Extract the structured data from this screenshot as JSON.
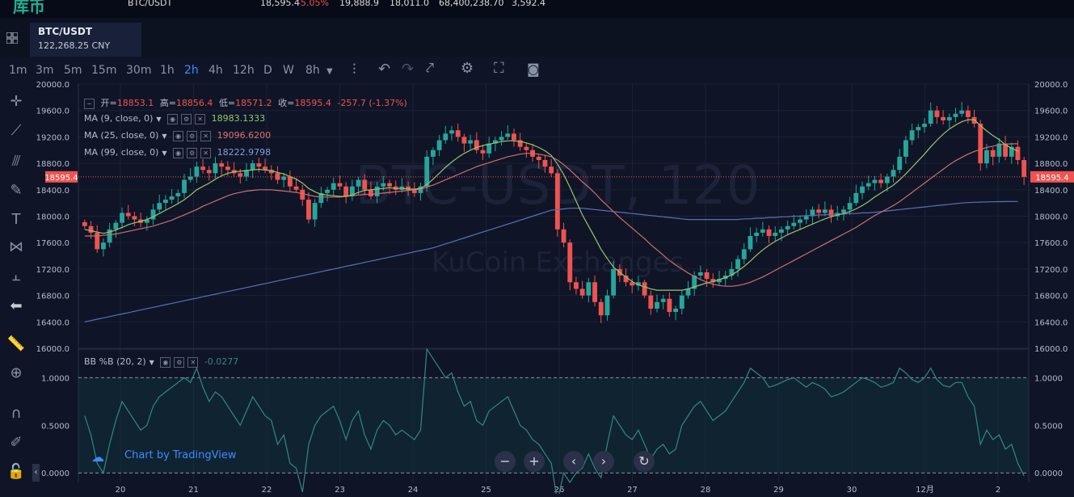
{
  "topbar": {
    "logo": "库币",
    "ticker_pair": "BTC/USDT",
    "last": "18,595.4",
    "change": "-5.05%",
    "high": "19,888.9",
    "low": "18,011.0",
    "volume": "68,400,238.70",
    "amount": "3,592.4"
  },
  "header": {
    "symbol": "BTC/USDT",
    "cny": "122,268.25 CNY"
  },
  "toolbar": {
    "timeframes": [
      "1m",
      "3m",
      "5m",
      "15m",
      "30m",
      "1h",
      "2h",
      "4h",
      "12h",
      "D",
      "W",
      "8h"
    ],
    "active": "2h"
  },
  "legend": {
    "open_label": "开=",
    "open": "18853.1",
    "high_label": "高=",
    "high": "18856.4",
    "low_label": "低=",
    "low": "18571.2",
    "close_label": "收=",
    "close": "18595.4",
    "change": "-257.7 (-1.37%)",
    "ma9_label": "MA (9, close, 0)",
    "ma9": "18983.1333",
    "ma25_label": "MA (25, close, 0)",
    "ma25": "19096.6200",
    "ma99_label": "MA (99, close, 0)",
    "ma99": "18222.9798",
    "bb_label": "BB %B (20, 2)",
    "bb": "-0.0277"
  },
  "watermark": {
    "pair": "BTC-USDT, 120",
    "exchange": "KuCoin Exchanges"
  },
  "tv_label": "Chart by TradingView",
  "colors": {
    "up": "#26a69a",
    "down": "#ef5350",
    "ma9": "#9bc46b",
    "ma25": "#d06d72",
    "ma99": "#5b6fb8",
    "bb": "#2e8a82",
    "bg": "#0f1527"
  },
  "chart_data": {
    "type": "candlestick",
    "x_ticks": [
      "20",
      "21",
      "22",
      "23",
      "24",
      "25",
      "26",
      "27",
      "28",
      "29",
      "30",
      "12月",
      "2"
    ],
    "y_ticks": [
      "20000.0",
      "19600.0",
      "19200.0",
      "18800.0",
      "18400.0",
      "18000.0",
      "17600.0",
      "17200.0",
      "16800.0",
      "16400.0",
      "16000.0"
    ],
    "ylim": [
      16000,
      20000
    ],
    "price_tag": "18595.4",
    "close": [
      17850,
      17750,
      17500,
      17600,
      17800,
      17900,
      18050,
      18000,
      17950,
      17900,
      17950,
      18100,
      18200,
      18250,
      18300,
      18350,
      18550,
      18600,
      18750,
      18700,
      18650,
      18800,
      18750,
      18700,
      18650,
      18600,
      18700,
      18800,
      18750,
      18700,
      18650,
      18550,
      18600,
      18450,
      18400,
      18250,
      17950,
      18200,
      18350,
      18400,
      18500,
      18450,
      18300,
      18450,
      18550,
      18400,
      18300,
      18450,
      18500,
      18450,
      18400,
      18450,
      18400,
      18350,
      18450,
      18900,
      19000,
      19150,
      19250,
      19300,
      19200,
      19100,
      19150,
      19000,
      18950,
      19100,
      19150,
      19200,
      19250,
      19150,
      19050,
      19000,
      18900,
      18850,
      18750,
      18650,
      17800,
      17600,
      17000,
      16900,
      16800,
      17000,
      16700,
      16500,
      16800,
      17200,
      17100,
      17000,
      16950,
      17000,
      16800,
      16600,
      16700,
      16750,
      16550,
      16600,
      16800,
      16900,
      17100,
      17150,
      17050,
      17000,
      17050,
      17100,
      17200,
      17350,
      17500,
      17700,
      17750,
      17800,
      17700,
      17750,
      17800,
      17850,
      17900,
      17950,
      18000,
      18100,
      18050,
      18100,
      18000,
      18050,
      18100,
      18200,
      18350,
      18450,
      18500,
      18550,
      18500,
      18600,
      18700,
      18900,
      19150,
      19300,
      19350,
      19400,
      19600,
      19500,
      19450,
      19500,
      19550,
      19600,
      19500,
      19400,
      18800,
      19000,
      18900,
      19100,
      18900,
      19050,
      18850,
      18595.4
    ],
    "ma9": [
      17800,
      17780,
      17760,
      17740,
      17760,
      17790,
      17830,
      17870,
      17900,
      17920,
      17950,
      17990,
      18040,
      18090,
      18140,
      18190,
      18250,
      18320,
      18400,
      18450,
      18500,
      18560,
      18610,
      18650,
      18670,
      18680,
      18690,
      18700,
      18710,
      18700,
      18690,
      18660,
      18640,
      18600,
      18560,
      18500,
      18420,
      18370,
      18330,
      18320,
      18310,
      18300,
      18300,
      18320,
      18360,
      18390,
      18400,
      18410,
      18420,
      18430,
      18420,
      18420,
      18410,
      18410,
      18420,
      18480,
      18560,
      18650,
      18740,
      18820,
      18890,
      18950,
      19000,
      19040,
      19070,
      19090,
      19110,
      19130,
      19140,
      19140,
      19130,
      19110,
      19080,
      19040,
      18990,
      18920,
      18790,
      18630,
      18440,
      18230,
      18020,
      17850,
      17680,
      17500,
      17360,
      17230,
      17150,
      17080,
      17010,
      16960,
      16930,
      16900,
      16880,
      16880,
      16880,
      16880,
      16880,
      16900,
      16930,
      16960,
      16990,
      17010,
      17040,
      17070,
      17110,
      17170,
      17240,
      17320,
      17410,
      17490,
      17560,
      17620,
      17670,
      17720,
      17760,
      17800,
      17840,
      17880,
      17920,
      17960,
      17990,
      18020,
      18040,
      18070,
      18110,
      18160,
      18220,
      18290,
      18350,
      18410,
      18470,
      18550,
      18640,
      18740,
      18840,
      18940,
      19050,
      19150,
      19240,
      19320,
      19380,
      19430,
      19460,
      19460,
      19370,
      19290,
      19220,
      19160,
      19080,
      19030,
      18983
    ],
    "ma25": [
      17700,
      17700,
      17700,
      17710,
      17720,
      17730,
      17750,
      17770,
      17790,
      17810,
      17830,
      17850,
      17880,
      17910,
      17940,
      17980,
      18020,
      18060,
      18100,
      18150,
      18190,
      18230,
      18270,
      18310,
      18340,
      18360,
      18380,
      18390,
      18400,
      18400,
      18400,
      18390,
      18380,
      18370,
      18360,
      18340,
      18320,
      18300,
      18290,
      18290,
      18290,
      18290,
      18300,
      18310,
      18320,
      18330,
      18330,
      18340,
      18350,
      18360,
      18370,
      18380,
      18390,
      18400,
      18410,
      18440,
      18470,
      18510,
      18550,
      18590,
      18630,
      18670,
      18710,
      18750,
      18780,
      18810,
      18840,
      18870,
      18900,
      18920,
      18940,
      18950,
      18950,
      18940,
      18920,
      18900,
      18850,
      18780,
      18700,
      18610,
      18520,
      18440,
      18350,
      18250,
      18160,
      18070,
      17980,
      17900,
      17820,
      17740,
      17660,
      17570,
      17490,
      17410,
      17330,
      17260,
      17200,
      17140,
      17090,
      17040,
      17000,
      16970,
      16950,
      16940,
      16940,
      16950,
      16970,
      17000,
      17040,
      17080,
      17130,
      17180,
      17230,
      17280,
      17330,
      17380,
      17430,
      17480,
      17530,
      17580,
      17630,
      17680,
      17730,
      17780,
      17830,
      17890,
      17950,
      18010,
      18060,
      18110,
      18160,
      18220,
      18290,
      18360,
      18430,
      18500,
      18570,
      18640,
      18710,
      18780,
      18840,
      18890,
      18940,
      18980,
      19010,
      19040,
      19060,
      19080,
      19090,
      19095,
      19096
    ],
    "ma99": [
      16400,
      16420,
      16440,
      16460,
      16480,
      16500,
      16520,
      16540,
      16560,
      16580,
      16600,
      16620,
      16640,
      16660,
      16680,
      16700,
      16720,
      16740,
      16760,
      16780,
      16800,
      16820,
      16840,
      16860,
      16880,
      16900,
      16920,
      16940,
      16960,
      16980,
      17000,
      17020,
      17040,
      17060,
      17080,
      17100,
      17120,
      17140,
      17160,
      17180,
      17200,
      17220,
      17240,
      17260,
      17280,
      17300,
      17320,
      17340,
      17360,
      17380,
      17400,
      17420,
      17440,
      17460,
      17480,
      17500,
      17520,
      17550,
      17580,
      17610,
      17640,
      17670,
      17700,
      17730,
      17760,
      17790,
      17820,
      17850,
      17880,
      17910,
      17940,
      17970,
      18000,
      18030,
      18060,
      18090,
      18100,
      18110,
      18120,
      18120,
      18120,
      18110,
      18100,
      18090,
      18080,
      18070,
      18060,
      18050,
      18040,
      18030,
      18020,
      18010,
      18000,
      17990,
      17980,
      17970,
      17960,
      17950,
      17950,
      17950,
      17950,
      17950,
      17950,
      17950,
      17950,
      17950,
      17960,
      17960,
      17970,
      17970,
      17980,
      17980,
      17990,
      17990,
      18000,
      18000,
      18010,
      18010,
      18020,
      18020,
      18030,
      18030,
      18030,
      18040,
      18040,
      18050,
      18050,
      18060,
      18070,
      18080,
      18090,
      18100,
      18110,
      18120,
      18130,
      18140,
      18150,
      18160,
      18170,
      18180,
      18190,
      18200,
      18205,
      18210,
      18213,
      18216,
      18218,
      18220,
      18221,
      18222,
      18223
    ],
    "bb_y_ticks": [
      "1.0000",
      "0.5000",
      "0.0000"
    ],
    "bb_ylim": [
      -0.1,
      1.3
    ],
    "bb": [
      0.6,
      0.4,
      0.1,
      0.0,
      0.3,
      0.55,
      0.75,
      0.65,
      0.55,
      0.45,
      0.5,
      0.7,
      0.8,
      0.85,
      0.9,
      0.95,
      1.0,
      0.95,
      1.1,
      0.9,
      0.75,
      0.85,
      0.8,
      0.7,
      0.6,
      0.5,
      0.65,
      0.8,
      0.7,
      0.6,
      0.55,
      0.3,
      0.4,
      0.1,
      0.05,
      -0.2,
      0.3,
      0.5,
      0.6,
      0.65,
      0.7,
      0.55,
      0.35,
      0.55,
      0.65,
      0.4,
      0.25,
      0.45,
      0.55,
      0.5,
      0.4,
      0.45,
      0.4,
      0.35,
      0.45,
      1.3,
      1.2,
      1.1,
      1.0,
      1.05,
      0.85,
      0.7,
      0.75,
      0.55,
      0.5,
      0.65,
      0.7,
      0.75,
      0.8,
      0.65,
      0.5,
      0.45,
      0.35,
      0.3,
      0.2,
      0.1,
      -0.3,
      0.0,
      -0.1,
      0.0,
      0.05,
      0.2,
      0.05,
      -0.05,
      0.3,
      0.6,
      0.5,
      0.4,
      0.35,
      0.45,
      0.3,
      0.15,
      0.25,
      0.3,
      0.2,
      0.25,
      0.5,
      0.6,
      0.7,
      0.75,
      0.65,
      0.55,
      0.6,
      0.65,
      0.75,
      0.85,
      0.95,
      1.1,
      1.05,
      1.0,
      0.9,
      0.92,
      0.95,
      0.98,
      1.0,
      0.95,
      0.9,
      0.95,
      0.92,
      0.88,
      0.8,
      0.82,
      0.85,
      0.9,
      0.95,
      1.0,
      0.98,
      0.95,
      0.9,
      0.92,
      0.95,
      1.1,
      1.05,
      0.98,
      0.95,
      1.0,
      1.1,
      0.98,
      0.92,
      0.9,
      0.95,
      0.95,
      0.8,
      0.7,
      0.3,
      0.45,
      0.35,
      0.4,
      0.25,
      0.3,
      0.1,
      -0.03
    ]
  }
}
